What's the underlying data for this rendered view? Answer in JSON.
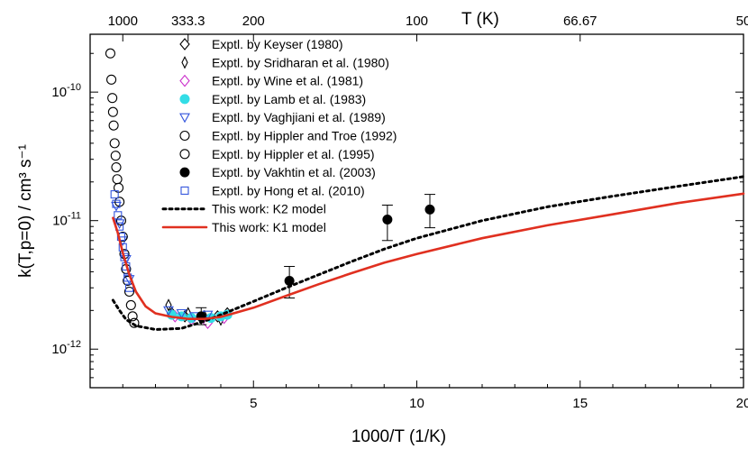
{
  "chart_data": {
    "type": "scatter",
    "xlabel": "1000/T (1/K)",
    "ylabel": "k(T,p=0) / cm³ s⁻¹",
    "top_axis_label": "T (K)",
    "xlim": [
      0,
      20
    ],
    "ylim_log10": [
      -12.3,
      -9.55
    ],
    "y_scale": "log",
    "x_ticks": [
      5,
      10,
      15,
      20
    ],
    "x_tick_labels": [
      "5",
      "10",
      "15",
      "20"
    ],
    "top_ticks": [
      {
        "T_label": "1000",
        "x": 1.0
      },
      {
        "T_label": "333.3",
        "x": 3.0
      },
      {
        "T_label": "200",
        "x": 5.0
      },
      {
        "T_label": "100",
        "x": 10.0
      },
      {
        "T_label": "66.67",
        "x": 15.0
      },
      {
        "T_label": "50",
        "x": 20.0
      }
    ],
    "y_ticks": [
      {
        "log10": -10,
        "base": "10",
        "exp": "-10"
      },
      {
        "log10": -11,
        "base": "10",
        "exp": "-11"
      },
      {
        "log10": -12,
        "base": "10",
        "exp": "-12"
      }
    ],
    "legend_position": "top-left",
    "series": [
      {
        "name": "Exptl. by Keyser (1980)",
        "marker": "diamond-open",
        "color": "#000000",
        "points": [
          [
            2.5,
            1.9e-12
          ],
          [
            2.9,
            1.8e-12
          ],
          [
            3.4,
            1.75e-12
          ],
          [
            3.9,
            1.8e-12
          ],
          [
            4.2,
            1.9e-12
          ]
        ]
      },
      {
        "name": "Exptl. by Sridharan et al. (1980)",
        "marker": "thin-diamond-open",
        "color": "#000000",
        "points": [
          [
            2.4,
            2.2e-12
          ],
          [
            3.0,
            1.9e-12
          ],
          [
            3.5,
            1.8e-12
          ],
          [
            4.0,
            1.7e-12
          ]
        ]
      },
      {
        "name": "Exptl. by Wine et al. (1981)",
        "marker": "diamond-open",
        "color": "#cc33cc",
        "points": [
          [
            2.6,
            1.8e-12
          ],
          [
            3.1,
            1.7e-12
          ],
          [
            3.6,
            1.6e-12
          ],
          [
            4.1,
            1.75e-12
          ]
        ]
      },
      {
        "name": "Exptl. by Lamb et al. (1983)",
        "marker": "circle-filled",
        "color": "#33dde6",
        "points": [
          [
            2.5,
            1.85e-12
          ],
          [
            2.8,
            1.8e-12
          ],
          [
            3.1,
            1.75e-12
          ],
          [
            3.4,
            1.8e-12
          ],
          [
            3.7,
            1.75e-12
          ],
          [
            4.0,
            1.8e-12
          ],
          [
            4.2,
            1.85e-12
          ]
        ]
      },
      {
        "name": "Exptl. by Vaghjiani et al. (1989)",
        "marker": "triangle-down-open",
        "color": "#3355dd",
        "points": [
          [
            0.8,
            1.3e-11
          ],
          [
            0.9,
            9.5e-12
          ],
          [
            1.0,
            7e-12
          ],
          [
            1.1,
            5e-12
          ],
          [
            1.2,
            3.5e-12
          ],
          [
            2.4,
            2e-12
          ],
          [
            2.8,
            1.9e-12
          ],
          [
            3.2,
            1.8e-12
          ],
          [
            3.6,
            1.85e-12
          ]
        ]
      },
      {
        "name": "Exptl. by Hippler and Troe (1992)",
        "marker": "circle-open",
        "color": "#000000",
        "points": [
          [
            0.62,
            2e-10
          ],
          [
            0.65,
            1.25e-10
          ],
          [
            0.68,
            9e-11
          ],
          [
            0.7,
            7e-11
          ],
          [
            0.72,
            5.5e-11
          ],
          [
            0.75,
            4e-11
          ],
          [
            0.78,
            3.2e-11
          ],
          [
            0.8,
            2.6e-11
          ],
          [
            0.83,
            2.1e-11
          ],
          [
            0.87,
            1.8e-11
          ]
        ]
      },
      {
        "name": "Exptl. by Hippler et al. (1995)",
        "marker": "circle-open",
        "color": "#000000",
        "points": [
          [
            0.9,
            1.4e-11
          ],
          [
            0.95,
            1e-11
          ],
          [
            1.0,
            7.5e-12
          ],
          [
            1.05,
            5.5e-12
          ],
          [
            1.1,
            4.2e-12
          ],
          [
            1.15,
            3.4e-12
          ],
          [
            1.2,
            2.8e-12
          ],
          [
            1.25,
            2.2e-12
          ],
          [
            1.3,
            1.8e-12
          ],
          [
            1.35,
            1.6e-12
          ]
        ]
      },
      {
        "name": "Exptl. by Vakhtin et al. (2003)",
        "marker": "circle-filled",
        "color": "#000000",
        "points": [
          [
            3.4,
            1.8e-12,
            2.1e-12,
            1.55e-12
          ],
          [
            6.1,
            3.4e-12,
            4.4e-12,
            2.5e-12
          ],
          [
            9.1,
            1.02e-11,
            1.32e-11,
            7e-12
          ],
          [
            10.4,
            1.22e-11,
            1.6e-11,
            8.8e-12
          ]
        ]
      },
      {
        "name": "Exptl. by Hong et al. (2010)",
        "marker": "square-open",
        "color": "#3355dd",
        "points": [
          [
            0.75,
            1.6e-11
          ],
          [
            0.8,
            1.35e-11
          ],
          [
            0.85,
            1.1e-11
          ],
          [
            0.9,
            9e-12
          ],
          [
            0.95,
            7.5e-12
          ],
          [
            1.0,
            6.2e-12
          ],
          [
            1.05,
            5.2e-12
          ],
          [
            1.1,
            4.4e-12
          ],
          [
            1.15,
            3.6e-12
          ],
          [
            1.2,
            3e-12
          ]
        ]
      },
      {
        "name": "This work: K2 model",
        "line": "dotted",
        "color": "#000000",
        "points": [
          [
            0.7,
            2.4e-12
          ],
          [
            0.9,
            2e-12
          ],
          [
            1.1,
            1.7e-12
          ],
          [
            1.4,
            1.52e-12
          ],
          [
            2.0,
            1.42e-12
          ],
          [
            2.8,
            1.45e-12
          ],
          [
            3.5,
            1.65e-12
          ],
          [
            4.0,
            1.85e-12
          ],
          [
            5.0,
            2.35e-12
          ],
          [
            6.0,
            3e-12
          ],
          [
            7.0,
            3.8e-12
          ],
          [
            8.0,
            4.8e-12
          ],
          [
            9.0,
            6e-12
          ],
          [
            10.0,
            7.3e-12
          ],
          [
            12.0,
            1e-11
          ],
          [
            14.0,
            1.28e-11
          ],
          [
            16.0,
            1.55e-11
          ],
          [
            18.0,
            1.85e-11
          ],
          [
            20.0,
            2.2e-11
          ]
        ]
      },
      {
        "name": "This work: K1 model",
        "line": "solid",
        "color": "#e03020",
        "points": [
          [
            0.7,
            1.05e-11
          ],
          [
            0.85,
            8e-12
          ],
          [
            1.0,
            5.6e-12
          ],
          [
            1.2,
            3.8e-12
          ],
          [
            1.4,
            2.8e-12
          ],
          [
            1.7,
            2.15e-12
          ],
          [
            2.0,
            1.9e-12
          ],
          [
            2.5,
            1.78e-12
          ],
          [
            3.0,
            1.72e-12
          ],
          [
            3.5,
            1.72e-12
          ],
          [
            4.0,
            1.78e-12
          ],
          [
            5.0,
            2.1e-12
          ],
          [
            6.0,
            2.6e-12
          ],
          [
            7.0,
            3.2e-12
          ],
          [
            8.0,
            3.9e-12
          ],
          [
            9.0,
            4.7e-12
          ],
          [
            10.0,
            5.5e-12
          ],
          [
            12.0,
            7.3e-12
          ],
          [
            14.0,
            9.2e-12
          ],
          [
            16.0,
            1.12e-11
          ],
          [
            18.0,
            1.37e-11
          ],
          [
            20.0,
            1.62e-11
          ]
        ]
      }
    ]
  }
}
